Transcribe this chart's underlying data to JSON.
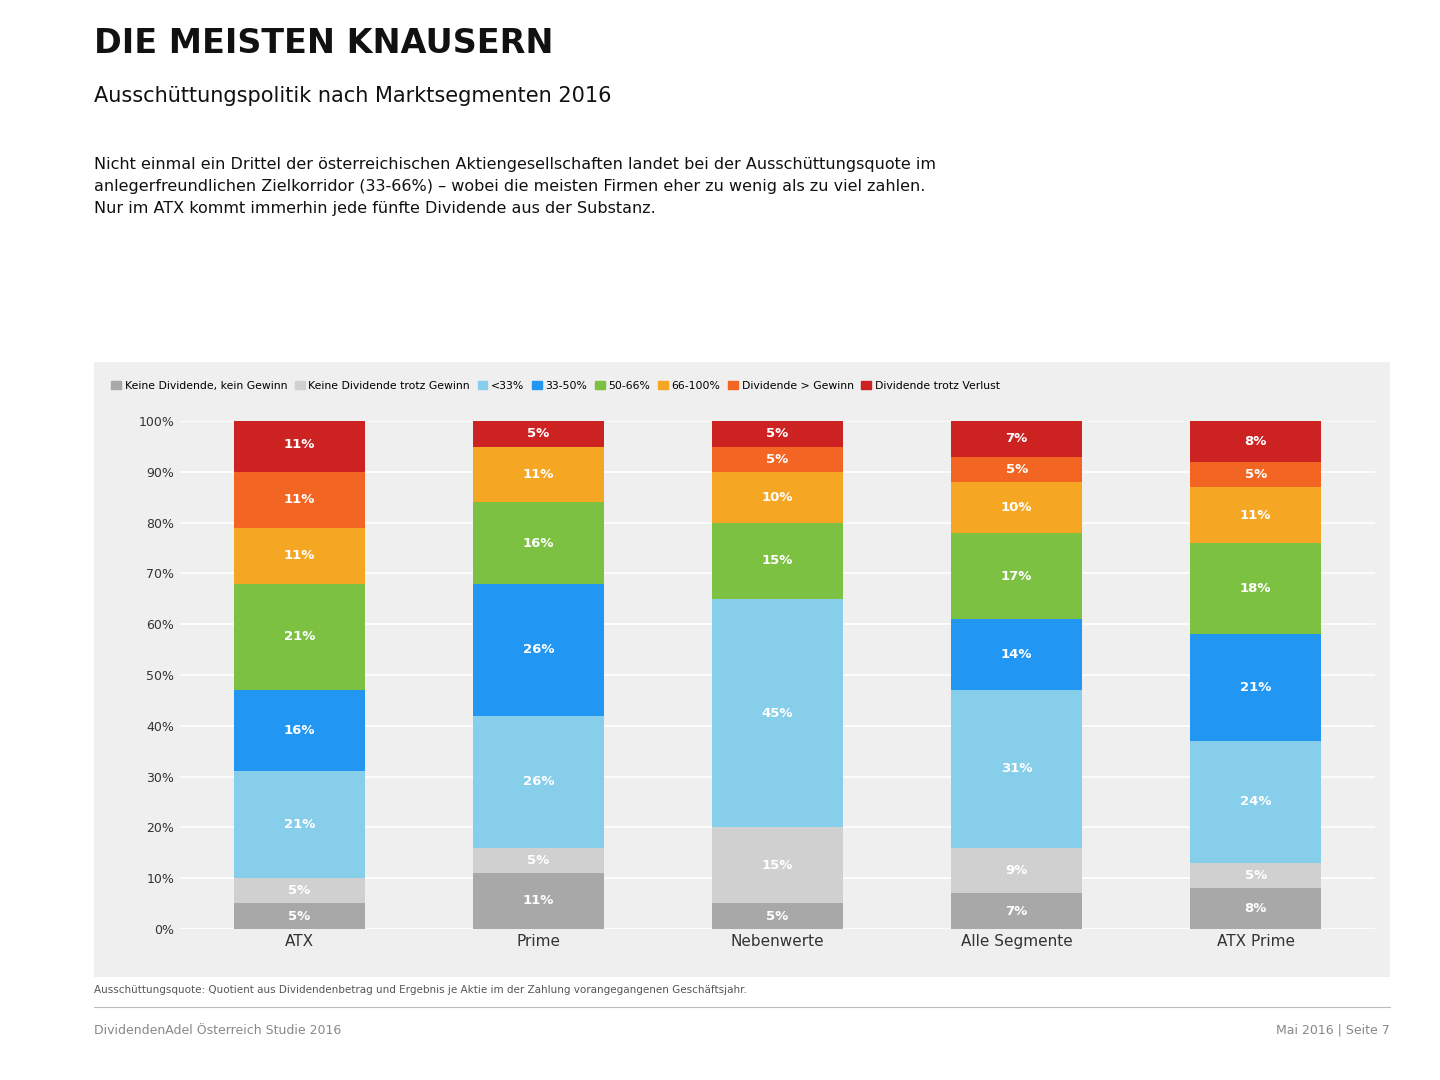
{
  "title_main": "DIE MEISTEN KNAUSERN",
  "title_sub": "Ausschüttungspolitik nach Marktsegmenten 2016",
  "body_text": "Nicht einmal ein Drittel der österreichischen Aktiengesellschaften landet bei der Ausschüttungsquote im\nanlegerfreundlichen Zielkorridor (33-66%) – wobei die meisten Firmen eher zu wenig als zu viel zahlen.\nNur im ATX kommt immerhin jede fünfte Dividende aus der Substanz.",
  "footnote": "Ausschüttungsquote: Quotient aus Dividendenbetrag und Ergebnis je Aktie im der Zahlung vorangegangenen Geschäftsjahr.",
  "footer_left": "DividendenAdel Österreich Studie 2016",
  "footer_right": "Mai 2016 | Seite 7",
  "categories": [
    "ATX",
    "Prime",
    "Nebenwerte",
    "Alle Segmente",
    "ATX Prime"
  ],
  "segments": [
    "Keine Dividende, kein Gewinn",
    "Keine Dividende trotz Gewinn",
    "<33%",
    "33-50%",
    "50-66%",
    "66-100%",
    "Dividende > Gewinn",
    "Dividende trotz Verlust"
  ],
  "colors": [
    "#a8a8a8",
    "#d0d0d0",
    "#87ceeb",
    "#2196f3",
    "#7dc142",
    "#f5a623",
    "#f26522",
    "#cc2222"
  ],
  "values": {
    "ATX": [
      5,
      5,
      21,
      16,
      21,
      11,
      11,
      11
    ],
    "Prime": [
      11,
      5,
      26,
      26,
      16,
      11,
      0,
      5
    ],
    "Nebenwerte": [
      5,
      15,
      45,
      0,
      15,
      10,
      5,
      5
    ],
    "Alle Segmente": [
      7,
      9,
      31,
      14,
      17,
      10,
      5,
      7
    ],
    "ATX Prime": [
      8,
      5,
      24,
      21,
      18,
      11,
      5,
      8
    ]
  },
  "background_color": "#ffffff",
  "chart_bg": "#efefef",
  "bar_width": 0.55
}
